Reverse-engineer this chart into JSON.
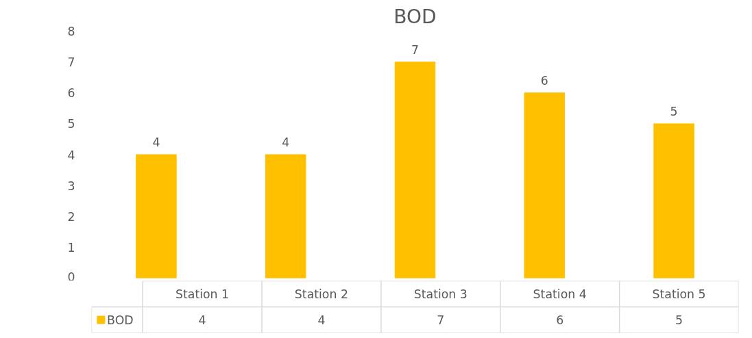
{
  "chart_data": {
    "type": "bar",
    "title": "BOD",
    "categories": [
      "Station 1",
      "Station 2",
      "Station 3",
      "Station 4",
      "Station 5"
    ],
    "series": [
      {
        "name": "BOD",
        "color": "#ffc000",
        "values": [
          4,
          4,
          7,
          6,
          5
        ],
        "value_labels": [
          "4",
          "4",
          "7",
          "6",
          "5"
        ]
      }
    ],
    "ylim": [
      0,
      8
    ],
    "yticks": [
      0,
      1,
      2,
      3,
      4,
      5,
      6,
      7,
      8
    ],
    "annotations": [
      "4",
      "4",
      "7",
      "6",
      "5"
    ],
    "grid": false,
    "legend": "bottom"
  }
}
